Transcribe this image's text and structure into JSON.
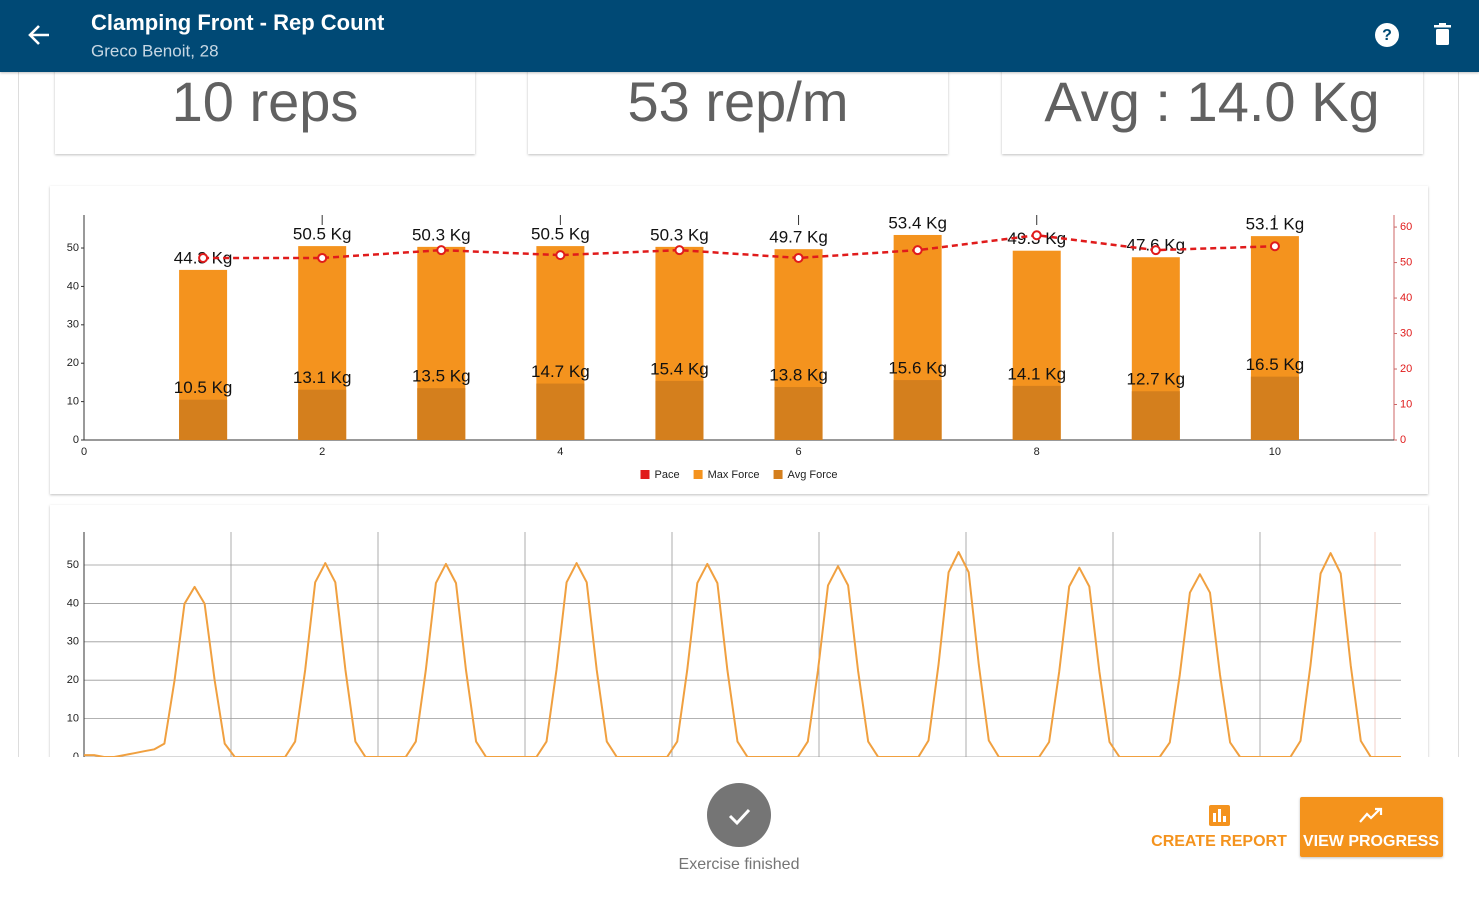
{
  "header": {
    "title": "Clamping Front - Rep Count",
    "subtitle": "Greco Benoit, 28"
  },
  "stats": [
    "10 reps",
    "53 rep/m",
    "Avg : 14.0 Kg"
  ],
  "chart_data": [
    {
      "type": "bar",
      "x": [
        1,
        2,
        3,
        4,
        5,
        6,
        7,
        8,
        9,
        10
      ],
      "xlim": [
        0,
        11
      ],
      "xticks": [
        0,
        2,
        4,
        6,
        8,
        10
      ],
      "ylim": [
        0,
        58.6
      ],
      "yticks": [
        0,
        10,
        20,
        30,
        40,
        50
      ],
      "y2lim": [
        0,
        63.4
      ],
      "y2ticks": [
        0,
        10,
        20,
        30,
        40,
        50,
        60
      ],
      "legend": "bottom",
      "series": [
        {
          "name": "Pace",
          "type": "line",
          "axis": "y2",
          "color": "#e01b1b",
          "values": [
            51.3,
            51.3,
            53.5,
            52.1,
            53.5,
            51.3,
            53.5,
            57.7,
            53.5,
            54.6
          ]
        },
        {
          "name": "Max Force",
          "color": "#f4931e",
          "values": [
            44.3,
            50.5,
            50.3,
            50.5,
            50.3,
            49.7,
            53.4,
            49.3,
            47.6,
            53.1
          ],
          "value_labels": [
            "44.3 Kg",
            "50.5 Kg",
            "50.3 Kg",
            "50.5 Kg",
            "50.3 Kg",
            "49.7 Kg",
            "53.4 Kg",
            "49.3 Kg",
            "47.6 Kg",
            "53.1 Kg"
          ]
        },
        {
          "name": "Avg Force",
          "color": "#d47f1d",
          "values": [
            10.5,
            13.1,
            13.5,
            14.7,
            15.4,
            13.8,
            15.6,
            14.1,
            12.7,
            16.5
          ],
          "value_labels": [
            "10.5 Kg",
            "13.1 Kg",
            "13.5 Kg",
            "14.7 Kg",
            "15.4 Kg",
            "13.8 Kg",
            "15.6 Kg",
            "14.1 Kg",
            "12.7 Kg",
            "16.5 Kg"
          ]
        }
      ]
    },
    {
      "type": "line",
      "ylim": [
        0,
        58.6
      ],
      "yticks": [
        0,
        10,
        20,
        30,
        40,
        50
      ],
      "grid": true,
      "color": "#f0a040",
      "values": [
        0.5,
        0.5,
        0,
        0,
        0.5,
        1,
        1.5,
        2,
        3.5,
        19.9,
        39.9,
        44.3,
        39.9,
        19.9,
        3.5,
        0,
        0,
        0,
        0,
        0,
        0,
        4,
        22.7,
        45.5,
        50.5,
        45.5,
        22.7,
        4,
        0,
        0,
        0,
        0,
        0,
        4,
        22.6,
        45.3,
        50.3,
        45.3,
        22.6,
        4,
        0,
        0,
        0,
        0,
        0,
        0,
        4,
        22.7,
        45.5,
        50.5,
        45.5,
        22.7,
        4,
        0,
        0,
        0,
        0,
        0,
        0,
        4,
        22.6,
        45.3,
        50.3,
        45.3,
        22.6,
        4,
        0,
        0,
        0,
        0,
        0,
        0,
        4,
        22.4,
        44.7,
        49.7,
        44.7,
        22.4,
        4,
        0,
        0,
        0,
        0,
        0,
        4.3,
        24,
        48.1,
        53.4,
        48.1,
        24,
        4.3,
        0,
        0,
        0,
        0,
        0,
        3.9,
        22.2,
        44.4,
        49.3,
        44.4,
        22.2,
        3.9,
        0,
        0,
        0,
        0,
        0,
        3.8,
        21.4,
        42.8,
        47.6,
        42.8,
        21.4,
        3.8,
        0,
        0,
        0,
        0,
        0,
        0,
        4.2,
        23.9,
        47.8,
        53.1,
        47.8,
        23.9,
        4.2,
        0,
        0,
        0,
        0
      ]
    }
  ],
  "status": "Exercise finished",
  "buttons": [
    "CREATE REPORT",
    "VIEW PROGRESS"
  ]
}
